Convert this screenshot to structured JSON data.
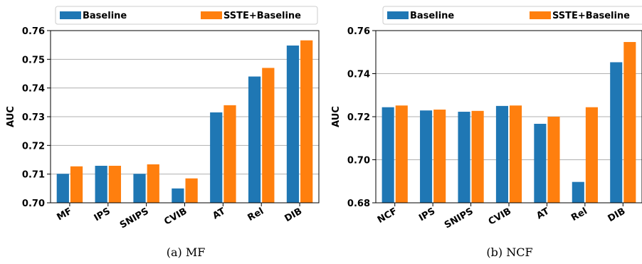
{
  "chart_data": [
    {
      "type": "bar",
      "caption": "(a) MF",
      "ylabel": "AUC",
      "categories": [
        "MF",
        "IPS",
        "SNIPS",
        "CVIB",
        "AT",
        "Rel",
        "DIB"
      ],
      "series": [
        {
          "name": "Baseline",
          "color": "#1f77b4",
          "values": [
            0.7101,
            0.7129,
            0.7101,
            0.705,
            0.7315,
            0.744,
            0.7548
          ]
        },
        {
          "name": "SSTE+Baseline",
          "color": "#ff7f0e",
          "values": [
            0.7127,
            0.7129,
            0.7134,
            0.7085,
            0.734,
            0.747,
            0.7566
          ]
        }
      ],
      "ylim": [
        0.7,
        0.76
      ],
      "yticks": [
        0.7,
        0.71,
        0.72,
        0.73,
        0.74,
        0.75,
        0.76
      ],
      "ytick_labels": [
        "0.70",
        "0.71",
        "0.72",
        "0.73",
        "0.74",
        "0.75",
        "0.76"
      ],
      "grid": "horizontal",
      "legend": "top"
    },
    {
      "type": "bar",
      "caption": "(b) NCF",
      "ylabel": "AUC",
      "categories": [
        "NCF",
        "IPS",
        "SNIPS",
        "CVIB",
        "AT",
        "Rel",
        "DIB"
      ],
      "series": [
        {
          "name": "Baseline",
          "color": "#1f77b4",
          "values": [
            0.7244,
            0.7229,
            0.7223,
            0.725,
            0.7167,
            0.6897,
            0.7453
          ]
        },
        {
          "name": "SSTE+Baseline",
          "color": "#ff7f0e",
          "values": [
            0.7252,
            0.7233,
            0.7227,
            0.7252,
            0.72,
            0.7244,
            0.7547
          ]
        }
      ],
      "ylim": [
        0.68,
        0.76
      ],
      "yticks": [
        0.68,
        0.7,
        0.72,
        0.74,
        0.76
      ],
      "ytick_labels": [
        "0.68",
        "0.70",
        "0.72",
        "0.74",
        "0.76"
      ],
      "grid": "horizontal",
      "legend": "top"
    }
  ]
}
